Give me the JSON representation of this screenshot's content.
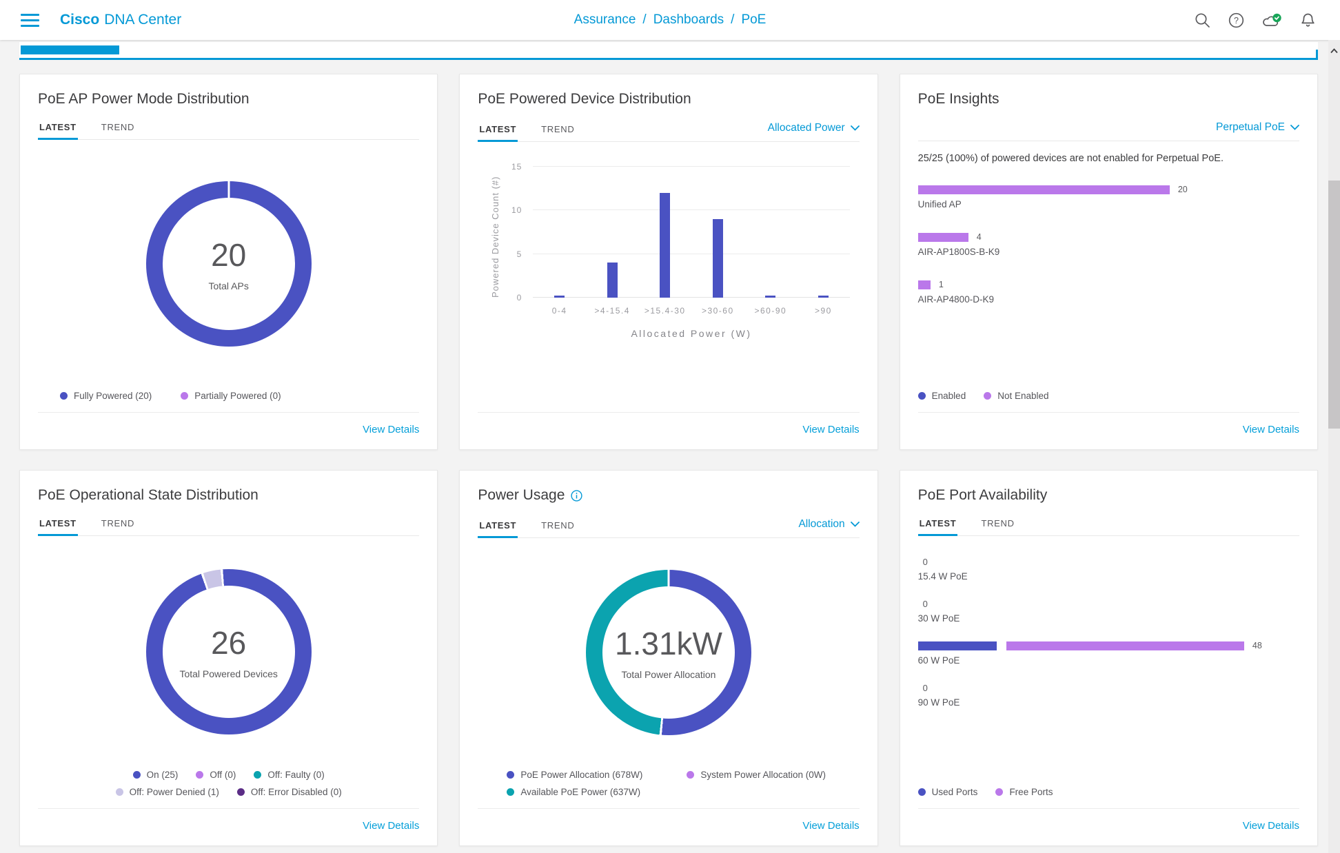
{
  "colors": {
    "accent": "#0499d6",
    "link": "#049fd9",
    "indigo": "#4a52c2",
    "purple": "#ba78ea",
    "lavender": "#c9c5e6",
    "teal": "#0ba3af",
    "dark_purple": "#5b2d86",
    "badge_green": "#18a558"
  },
  "header": {
    "brand_bold": "Cisco",
    "brand_light": "DNA Center",
    "breadcrumb": [
      "Assurance",
      "Dashboards",
      "PoE"
    ],
    "breadcrumb_separator": "/",
    "icons": [
      "search-icon",
      "help-icon",
      "cloud-status-icon-green-check",
      "notifications-bell-icon"
    ]
  },
  "cards": {
    "ap_power_mode": {
      "title": "PoE AP Power Mode Distribution",
      "tabs": [
        "LATEST",
        "TREND"
      ],
      "active_tab": "LATEST",
      "donut": {
        "center_value": "20",
        "center_label": "Total APs",
        "segments": [
          {
            "label": "Fully Powered",
            "count": 20,
            "color": "#4a52c2"
          },
          {
            "label": "Partially Powered",
            "count": 0,
            "color": "#ba78ea"
          }
        ]
      },
      "legend": [
        {
          "label": "Fully Powered (20)",
          "color": "#4a52c2"
        },
        {
          "label": "Partially Powered (0)",
          "color": "#ba78ea"
        }
      ],
      "view_details": "View Details"
    },
    "powered_device": {
      "title": "PoE Powered Device Distribution",
      "tabs": [
        "LATEST",
        "TREND"
      ],
      "active_tab": "LATEST",
      "dropdown": "Allocated Power",
      "chart": {
        "type": "bar",
        "categories": [
          "0-4",
          ">4-15.4",
          ">15.4-30",
          ">30-60",
          ">60-90",
          ">90"
        ],
        "values": [
          0,
          4,
          12,
          9,
          0,
          0
        ],
        "ylabel": "Powered Device Count (#)",
        "xlabel": "Allocated Power (W)",
        "yticks": [
          0,
          5,
          10,
          15
        ],
        "ylim": [
          0,
          15
        ],
        "bar_color": "#4a52c2",
        "grid": true
      },
      "view_details": "View Details"
    },
    "insights": {
      "title": "PoE Insights",
      "dropdown": "Perpetual PoE",
      "summary": "25/25 (100%) of powered devices are not enabled for Perpetual PoE.",
      "chart": {
        "type": "bar-horizontal",
        "max": 20,
        "bars": [
          {
            "label": "Unified AP",
            "value": 20,
            "color": "#ba78ea"
          },
          {
            "label": "AIR-AP1800S-B-K9",
            "value": 4,
            "color": "#ba78ea"
          },
          {
            "label": "AIR-AP4800-D-K9",
            "value": 1,
            "color": "#ba78ea"
          }
        ]
      },
      "legend": [
        {
          "label": "Enabled",
          "color": "#4a52c2"
        },
        {
          "label": "Not Enabled",
          "color": "#ba78ea"
        }
      ],
      "view_details": "View Details"
    },
    "operational_state": {
      "title": "PoE Operational State Distribution",
      "tabs": [
        "LATEST",
        "TREND"
      ],
      "active_tab": "LATEST",
      "donut": {
        "center_value": "26",
        "center_label": "Total Powered Devices",
        "segments": [
          {
            "label": "On",
            "count": 25,
            "color": "#4a52c2"
          },
          {
            "label": "Off",
            "count": 0,
            "color": "#ba78ea"
          },
          {
            "label": "Off: Faulty",
            "count": 0,
            "color": "#0ba3af"
          },
          {
            "label": "Off: Power Denied",
            "count": 1,
            "color": "#c9c5e6"
          },
          {
            "label": "Off: Error Disabled",
            "count": 0,
            "color": "#5b2d86"
          }
        ]
      },
      "legend_rows": [
        [
          {
            "label": "On (25)",
            "color": "#4a52c2"
          },
          {
            "label": "Off (0)",
            "color": "#ba78ea"
          },
          {
            "label": "Off: Faulty (0)",
            "color": "#0ba3af"
          }
        ],
        [
          {
            "label": "Off: Power Denied (1)",
            "color": "#c9c5e6"
          },
          {
            "label": "Off: Error Disabled (0)",
            "color": "#5b2d86"
          }
        ]
      ],
      "view_details": "View Details"
    },
    "power_usage": {
      "title": "Power Usage",
      "info_icon": "info-icon",
      "tabs": [
        "LATEST",
        "TREND"
      ],
      "active_tab": "LATEST",
      "dropdown": "Allocation",
      "donut": {
        "center_value": "1.31kW",
        "center_label": "Total Power Allocation",
        "segments": [
          {
            "label": "PoE Power Allocation",
            "count": 678,
            "color": "#4a52c2"
          },
          {
            "label": "System Power Allocation",
            "count": 0,
            "color": "#ba78ea"
          },
          {
            "label": "Available PoE Power",
            "count": 637,
            "color": "#0ba3af"
          }
        ]
      },
      "legend_rows": [
        [
          {
            "label": "PoE Power Allocation (678W)",
            "color": "#4a52c2"
          },
          {
            "label": "System Power Allocation (0W)",
            "color": "#ba78ea"
          }
        ],
        [
          {
            "label": "Available PoE Power (637W)",
            "color": "#0ba3af"
          }
        ]
      ],
      "view_details": "View Details"
    },
    "port_availability": {
      "title": "PoE Port Availability",
      "tabs": [
        "LATEST",
        "TREND"
      ],
      "active_tab": "LATEST",
      "chart": {
        "type": "stacked-bar-horizontal",
        "used_color": "#4a52c2",
        "free_color": "#ba78ea",
        "rows": [
          {
            "label": "15.4 W PoE",
            "total": 0,
            "used": 0,
            "free": 0
          },
          {
            "label": "30 W PoE",
            "total": 0,
            "used": 0,
            "free": 0
          },
          {
            "label": "60 W PoE",
            "total": 48,
            "used": 12,
            "free": 36
          },
          {
            "label": "90 W PoE",
            "total": 0,
            "used": 0,
            "free": 0
          }
        ]
      },
      "legend": [
        {
          "label": "Used Ports",
          "color": "#4a52c2"
        },
        {
          "label": "Free Ports",
          "color": "#ba78ea"
        }
      ],
      "view_details": "View Details"
    }
  }
}
